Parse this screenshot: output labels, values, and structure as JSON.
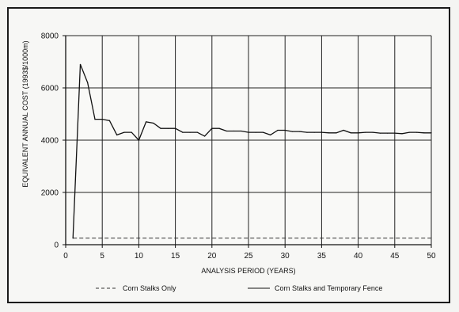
{
  "chart_data": {
    "type": "line",
    "title": "",
    "xlabel": "ANALYSIS PERIOD (YEARS)",
    "ylabel": "EQUIVALENT ANNUAL COST (1993$/1000m)",
    "xlim": [
      0,
      50
    ],
    "ylim": [
      0,
      8000
    ],
    "xticks": [
      0,
      5,
      10,
      15,
      20,
      25,
      30,
      35,
      40,
      45,
      50
    ],
    "yticks": [
      0,
      2000,
      4000,
      6000,
      8000
    ],
    "grid": true,
    "legend_placement": "bottom",
    "series": [
      {
        "name": "Corn Stalks Only",
        "style": "dashed",
        "color": "#333333",
        "x": [
          1,
          5,
          10,
          15,
          20,
          25,
          30,
          35,
          40,
          45,
          50
        ],
        "y": [
          250,
          250,
          250,
          250,
          250,
          250,
          250,
          250,
          250,
          250,
          250
        ]
      },
      {
        "name": "Corn Stalks and Temporary Fence",
        "style": "solid",
        "color": "#111111",
        "x": [
          1,
          2,
          3,
          4,
          5,
          6,
          7,
          8,
          9,
          10,
          11,
          12,
          13,
          14,
          15,
          16,
          17,
          18,
          19,
          20,
          21,
          22,
          23,
          24,
          25,
          26,
          27,
          28,
          29,
          30,
          31,
          32,
          33,
          34,
          35,
          36,
          37,
          38,
          39,
          40,
          41,
          42,
          43,
          44,
          45,
          46,
          47,
          48,
          49,
          50
        ],
        "y": [
          250,
          6900,
          6200,
          4800,
          4800,
          4750,
          4200,
          4300,
          4300,
          4000,
          4700,
          4650,
          4450,
          4450,
          4450,
          4300,
          4300,
          4300,
          4150,
          4450,
          4450,
          4350,
          4350,
          4350,
          4300,
          4300,
          4300,
          4200,
          4380,
          4380,
          4330,
          4330,
          4300,
          4300,
          4300,
          4280,
          4280,
          4380,
          4280,
          4280,
          4300,
          4300,
          4270,
          4270,
          4270,
          4250,
          4300,
          4300,
          4280,
          4280
        ]
      }
    ]
  }
}
